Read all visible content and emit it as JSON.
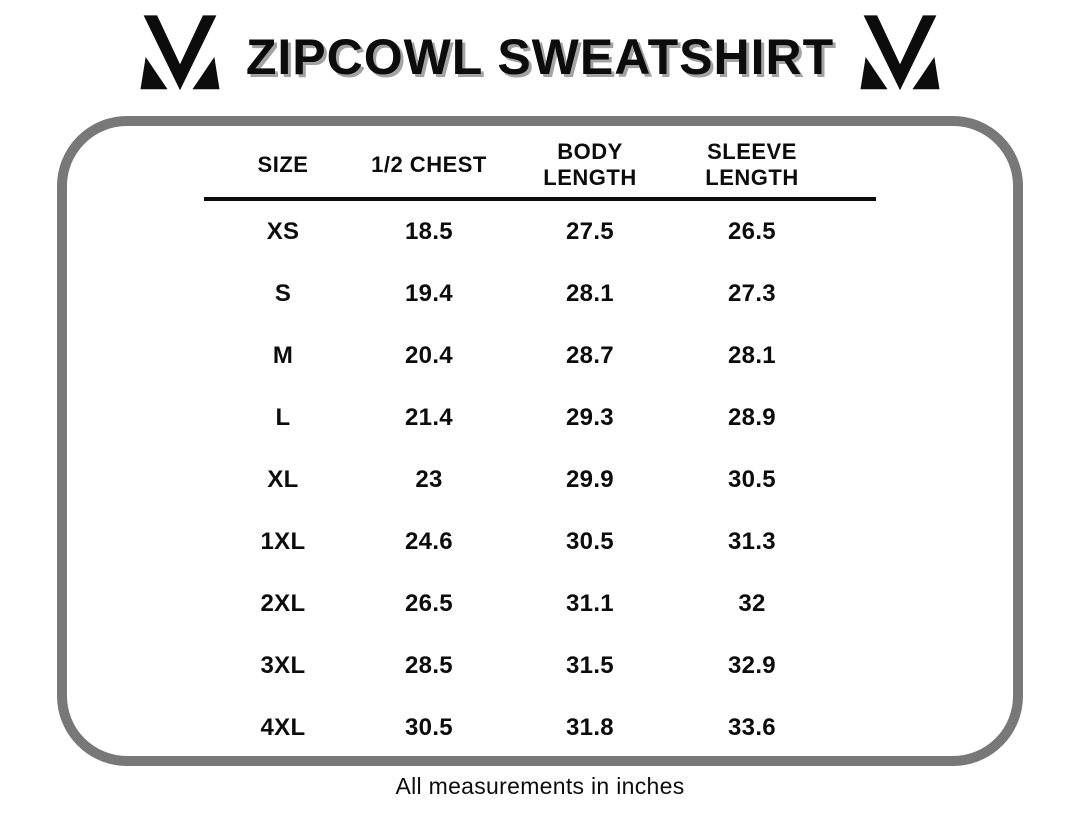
{
  "header": {
    "title": "ZIPCOWL SWEATSHIRT"
  },
  "size_chart": {
    "columns": [
      "SIZE",
      "1/2 CHEST",
      "BODY\nLENGTH",
      "SLEEVE\nLENGTH"
    ],
    "rows": [
      [
        "XS",
        "18.5",
        "27.5",
        "26.5"
      ],
      [
        "S",
        "19.4",
        "28.1",
        "27.3"
      ],
      [
        "M",
        "20.4",
        "28.7",
        "28.1"
      ],
      [
        "L",
        "21.4",
        "29.3",
        "28.9"
      ],
      [
        "XL",
        "23",
        "29.9",
        "30.5"
      ],
      [
        "1XL",
        "24.6",
        "30.5",
        "31.3"
      ],
      [
        "2XL",
        "26.5",
        "31.1",
        "32"
      ],
      [
        "3XL",
        "28.5",
        "31.5",
        "32.9"
      ],
      [
        "4XL",
        "30.5",
        "31.8",
        "33.6"
      ]
    ]
  },
  "footer": {
    "note": "All measurements in inches"
  },
  "icons": {
    "brand_logo": "m-monogram-icon"
  },
  "colors": {
    "border_gray": "#787878",
    "text_black": "#0c0c0c",
    "title_shadow": "#a3a3a3"
  },
  "chart_data": {
    "type": "table",
    "title": "ZIPCOWL SWEATSHIRT",
    "columns": [
      "SIZE",
      "1/2 CHEST",
      "BODY LENGTH",
      "SLEEVE LENGTH"
    ],
    "units": "inches",
    "rows": [
      [
        "XS",
        18.5,
        27.5,
        26.5
      ],
      [
        "S",
        19.4,
        28.1,
        27.3
      ],
      [
        "M",
        20.4,
        28.7,
        28.1
      ],
      [
        "L",
        21.4,
        29.3,
        28.9
      ],
      [
        "XL",
        23,
        29.9,
        30.5
      ],
      [
        "1XL",
        24.6,
        30.5,
        31.3
      ],
      [
        "2XL",
        26.5,
        31.1,
        32
      ],
      [
        "3XL",
        28.5,
        31.5,
        32.9
      ],
      [
        "4XL",
        30.5,
        31.8,
        33.6
      ]
    ],
    "note": "All measurements in inches"
  }
}
